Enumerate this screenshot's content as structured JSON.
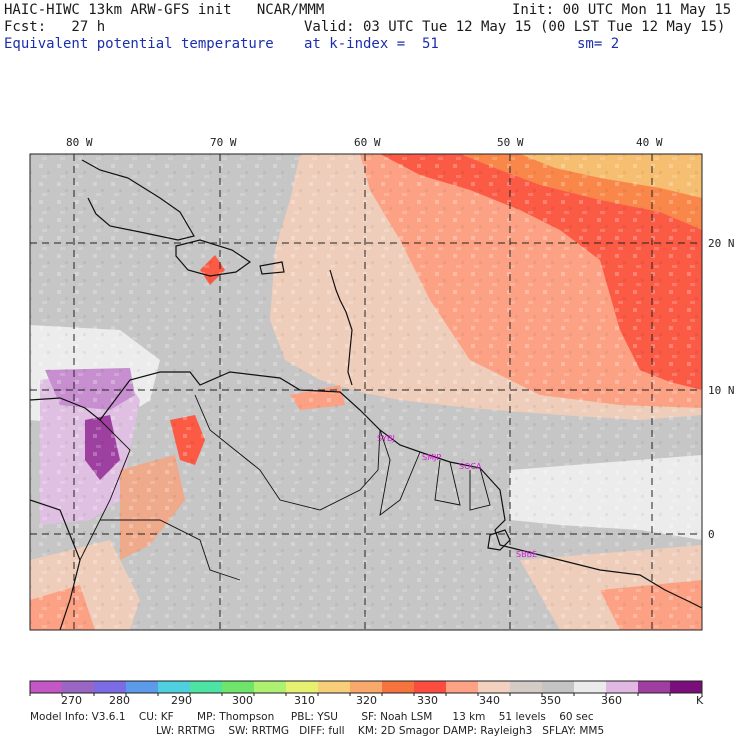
{
  "header": {
    "model_title": "HAIC-HIWC 13km ARW-GFS init   NCAR/MMM",
    "init_time": "Init: 00 UTC Mon 11 May 15",
    "forecast_hour": "Fcst:   27 h",
    "valid_time": "Valid: 03 UTC Tue 12 May 15 (00 LST Tue 12 May 15)",
    "field_name": "Equivalent potential temperature",
    "level": "at k-index =  51",
    "smoothing": "sm= 2"
  },
  "map": {
    "longitude_labels": [
      "80 W",
      "70 W",
      "60 W",
      "50 W",
      "40 W"
    ],
    "latitude_labels": [
      "20 N",
      "10 N",
      "0"
    ],
    "stations": [
      "SYBJ",
      "SMJP",
      "SOCA",
      "SBBE"
    ],
    "station_color": "#d61cd6"
  },
  "colorbar": {
    "tick_labels": [
      "270",
      "280",
      "290",
      "300",
      "310",
      "320",
      "330",
      "340",
      "350",
      "360"
    ],
    "units": "K",
    "colors": [
      "#c357c3",
      "#9a66c4",
      "#7b6ce6",
      "#5b9bea",
      "#4fd0de",
      "#4ce3a3",
      "#6ee56a",
      "#aef070",
      "#e6f171",
      "#f6cf78",
      "#f7a86a",
      "#f6733e",
      "#fb4d3f",
      "#fda285",
      "#f3d0bf",
      "#d4cbc5",
      "#c4c4c4",
      "#ebebeb",
      "#e0b8e2",
      "#9f3ea1",
      "#7a0e7a"
    ]
  },
  "model_info": {
    "line1": "Model Info: V3.6.1    CU: KF       MP: Thompson     PBL: YSU       SF: Noah LSM      13 km    51 levels    60 sec",
    "line2": "LW: RRTMG    SW: RRTMG   DIFF: full    KM: 2D Smagor DAMP: Rayleigh3   SFLAY: MM5"
  }
}
